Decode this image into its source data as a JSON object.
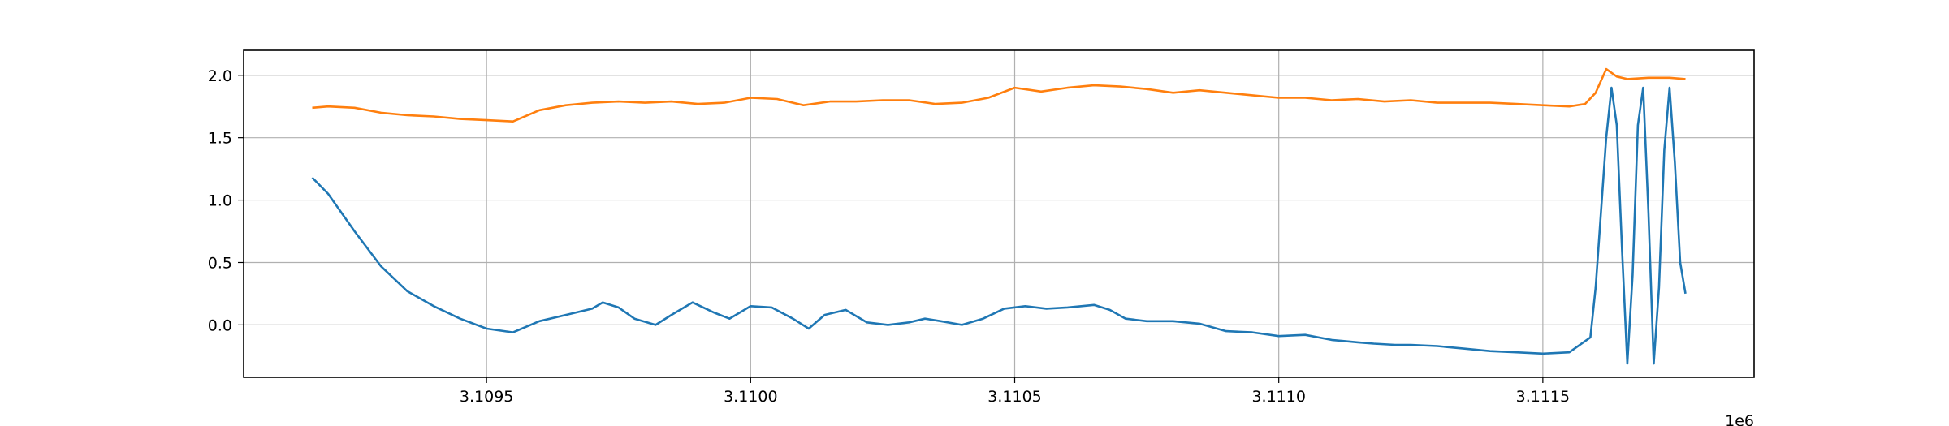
{
  "chart_data": {
    "type": "line",
    "title": "",
    "xlabel": "",
    "ylabel": "",
    "x_offset_label": "1e6",
    "xlim": [
      3.10904,
      3.1119
    ],
    "ylim": [
      -0.42,
      2.2
    ],
    "x_ticks": [
      3.1095,
      3.11,
      3.1105,
      3.111,
      3.1115
    ],
    "x_tick_labels": [
      "3.1095",
      "3.1100",
      "3.1105",
      "3.1110",
      "3.1115"
    ],
    "y_ticks": [
      0.0,
      0.5,
      1.0,
      1.5,
      2.0
    ],
    "y_tick_labels": [
      "0.0",
      "0.5",
      "1.0",
      "1.5",
      "2.0"
    ],
    "grid": true,
    "legend": "none",
    "series": [
      {
        "color": "#1f77b4",
        "x": [
          3.10917,
          3.1092,
          3.10925,
          3.1093,
          3.10935,
          3.1094,
          3.10945,
          3.1095,
          3.10955,
          3.1096,
          3.10965,
          3.1097,
          3.10972,
          3.10975,
          3.10978,
          3.10982,
          3.10985,
          3.10989,
          3.10993,
          3.10996,
          3.11,
          3.11004,
          3.11008,
          3.11011,
          3.11014,
          3.11018,
          3.11022,
          3.11026,
          3.1103,
          3.11033,
          3.11036,
          3.1104,
          3.11044,
          3.11048,
          3.11052,
          3.11056,
          3.1106,
          3.11065,
          3.11068,
          3.11071,
          3.11075,
          3.1108,
          3.11085,
          3.1109,
          3.11095,
          3.111,
          3.11105,
          3.1111,
          3.11115,
          3.11118,
          3.11122,
          3.11125,
          3.1113,
          3.11135,
          3.1114,
          3.11145,
          3.1115,
          3.11155,
          3.11159,
          3.1116,
          3.11161,
          3.11162,
          3.11163,
          3.11164,
          3.11165,
          3.11166,
          3.11167,
          3.11168,
          3.11169,
          3.1117,
          3.11171,
          3.11172,
          3.11173,
          3.11174,
          3.11175,
          3.11176,
          3.11177
        ],
        "y": [
          1.18,
          1.05,
          0.75,
          0.47,
          0.27,
          0.15,
          0.05,
          -0.03,
          -0.06,
          0.03,
          0.08,
          0.13,
          0.18,
          0.14,
          0.05,
          0.0,
          0.08,
          0.18,
          0.1,
          0.05,
          0.15,
          0.14,
          0.05,
          -0.03,
          0.08,
          0.12,
          0.02,
          0.0,
          0.02,
          0.05,
          0.03,
          0.0,
          0.05,
          0.13,
          0.15,
          0.13,
          0.14,
          0.16,
          0.12,
          0.05,
          0.03,
          0.03,
          0.01,
          -0.05,
          -0.06,
          -0.09,
          -0.08,
          -0.12,
          -0.14,
          -0.15,
          -0.16,
          -0.16,
          -0.17,
          -0.19,
          -0.21,
          -0.22,
          -0.23,
          -0.22,
          -0.1,
          0.3,
          0.9,
          1.5,
          1.9,
          1.6,
          0.6,
          -0.31,
          0.4,
          1.6,
          1.9,
          0.9,
          -0.31,
          0.3,
          1.4,
          1.9,
          1.3,
          0.5,
          0.25
        ]
      },
      {
        "color": "#ff7f0e",
        "x": [
          3.10917,
          3.1092,
          3.10925,
          3.1093,
          3.10935,
          3.1094,
          3.10945,
          3.1095,
          3.10955,
          3.1096,
          3.10965,
          3.1097,
          3.10975,
          3.1098,
          3.10985,
          3.1099,
          3.10995,
          3.11,
          3.11005,
          3.1101,
          3.11015,
          3.1102,
          3.11025,
          3.1103,
          3.11035,
          3.1104,
          3.11045,
          3.1105,
          3.11055,
          3.1106,
          3.11065,
          3.1107,
          3.11075,
          3.1108,
          3.11085,
          3.1109,
          3.11095,
          3.111,
          3.11105,
          3.1111,
          3.11115,
          3.1112,
          3.11125,
          3.1113,
          3.11135,
          3.1114,
          3.11145,
          3.1115,
          3.11155,
          3.11158,
          3.1116,
          3.11162,
          3.11164,
          3.11166,
          3.1117,
          3.11174,
          3.11177
        ],
        "y": [
          1.74,
          1.75,
          1.74,
          1.7,
          1.68,
          1.67,
          1.65,
          1.64,
          1.63,
          1.72,
          1.76,
          1.78,
          1.79,
          1.78,
          1.79,
          1.77,
          1.78,
          1.82,
          1.81,
          1.76,
          1.79,
          1.79,
          1.8,
          1.8,
          1.77,
          1.78,
          1.82,
          1.9,
          1.87,
          1.9,
          1.92,
          1.91,
          1.89,
          1.86,
          1.88,
          1.86,
          1.84,
          1.82,
          1.82,
          1.8,
          1.81,
          1.79,
          1.8,
          1.78,
          1.78,
          1.78,
          1.77,
          1.76,
          1.75,
          1.77,
          1.86,
          2.05,
          1.99,
          1.97,
          1.98,
          1.98,
          1.97
        ]
      }
    ]
  }
}
